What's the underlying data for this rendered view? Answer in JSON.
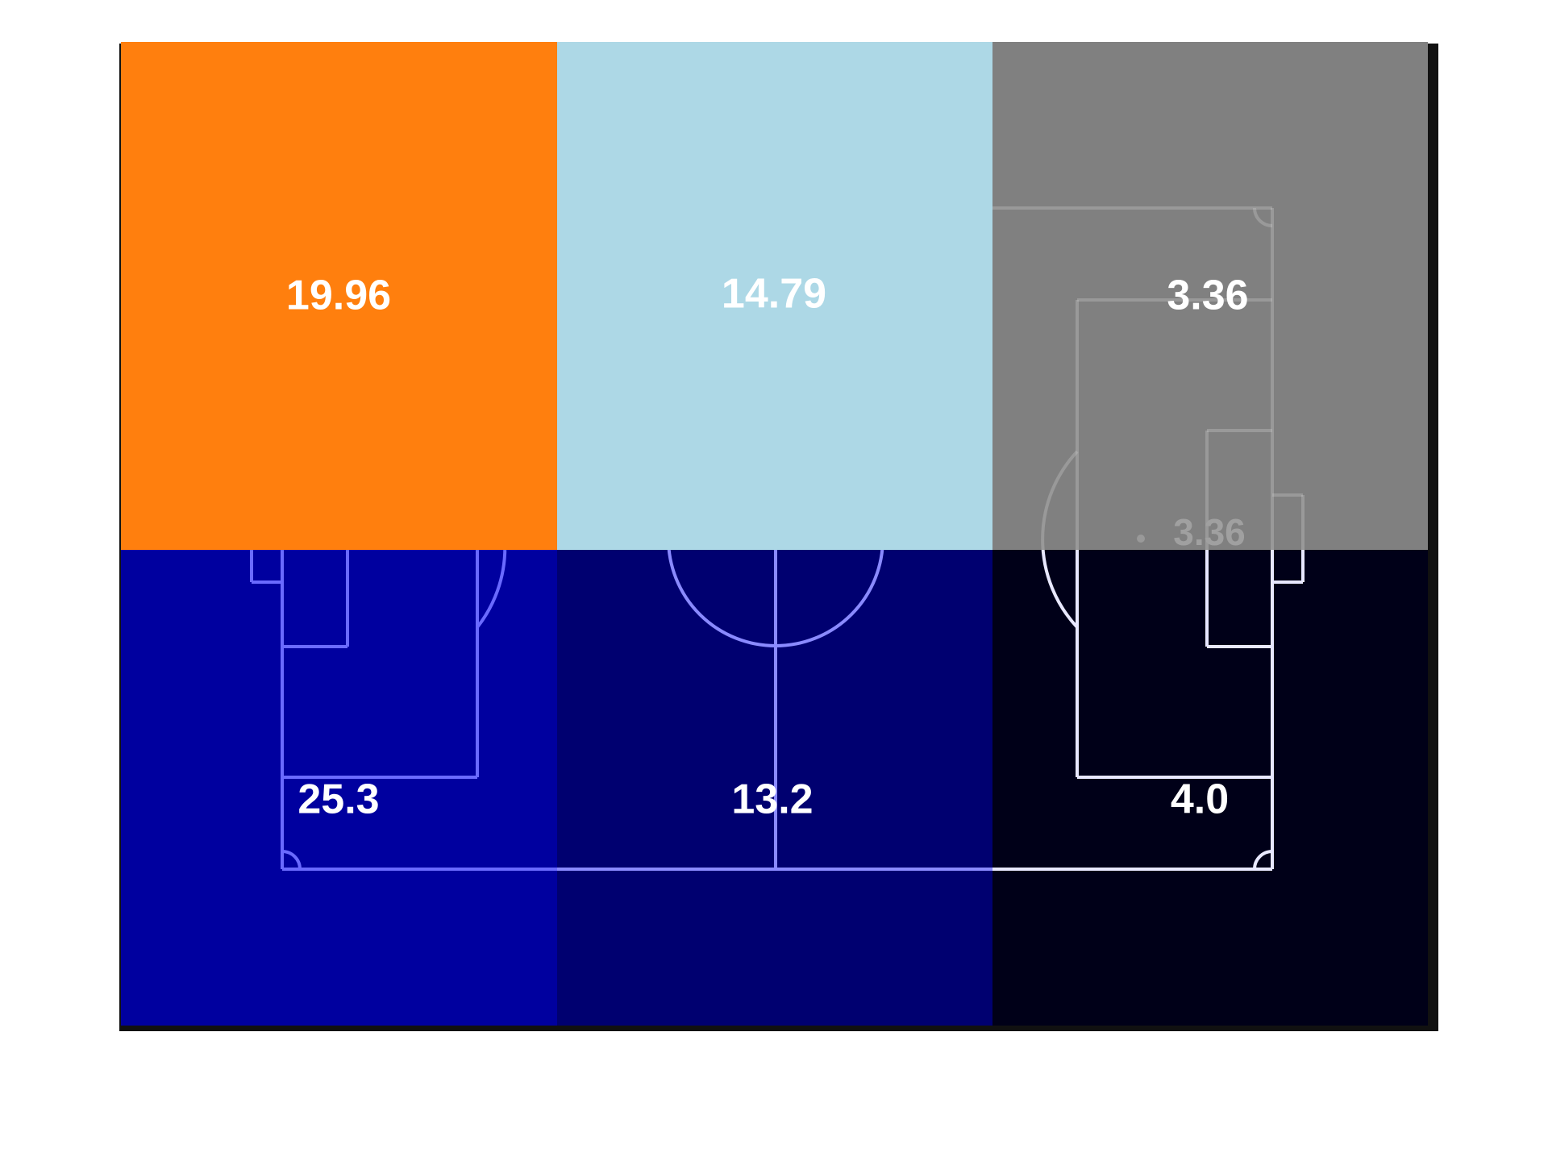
{
  "chart_data": {
    "type": "heatmap",
    "title": "",
    "xlabel": "",
    "ylabel": "",
    "grid": false,
    "legend": "none",
    "rows": [
      {
        "cells": [
          {
            "value": "19.96",
            "color": "#ff7f0e",
            "label_color": "#ffffff"
          },
          {
            "value": "14.79",
            "color": "#add8e6",
            "label_color": "#ffffff"
          },
          {
            "value": "3.36",
            "color": "#808080",
            "label_color": "#ffffff"
          }
        ]
      },
      {
        "cells": [
          {
            "value": "25.3",
            "color": "#00009f",
            "label_color": "#ffffff"
          },
          {
            "value": "13.2",
            "color": "#000070",
            "label_color": "#ffffff"
          },
          {
            "value": "4.0",
            "color": "#000018",
            "label_color": "#ffffff"
          }
        ]
      }
    ],
    "extra_annotation": {
      "value": "3.36",
      "color": "#a0a0a0"
    },
    "pitch_line_colors": [
      "#6a6aff",
      "#8a8aff",
      "#e8e8ff"
    ],
    "frame_color": "#111111"
  }
}
